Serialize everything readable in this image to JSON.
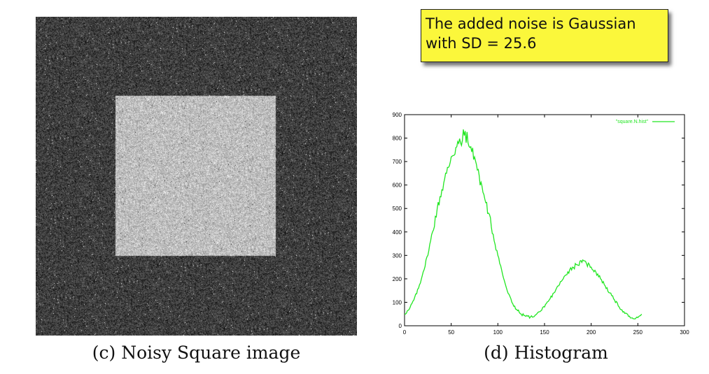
{
  "left_panel": {
    "caption": "(c) Noisy Square image"
  },
  "note": {
    "line1": "The added noise is Gaussian",
    "line2": "with SD = 25.6"
  },
  "chart_data": {
    "type": "line",
    "caption": "(d) Histogram",
    "legend": "\"square.N.hist\"",
    "legend_position": "top-right",
    "line_color": "#22e622",
    "xlim": [
      0,
      300
    ],
    "ylim": [
      0,
      900
    ],
    "xticks": [
      0,
      50,
      100,
      150,
      200,
      250,
      300
    ],
    "yticks": [
      0,
      100,
      200,
      300,
      400,
      500,
      600,
      700,
      800,
      900
    ],
    "grid": false,
    "series": [
      {
        "name": "\"square.N.hist\"",
        "x": [
          0,
          5,
          10,
          15,
          20,
          25,
          30,
          35,
          40,
          45,
          50,
          55,
          60,
          62,
          65,
          68,
          70,
          75,
          80,
          85,
          90,
          95,
          100,
          105,
          110,
          115,
          120,
          125,
          130,
          135,
          140,
          145,
          150,
          155,
          160,
          165,
          170,
          175,
          180,
          185,
          190,
          195,
          200,
          205,
          210,
          215,
          220,
          225,
          230,
          235,
          240,
          245,
          250,
          254
        ],
        "y": [
          50,
          70,
          110,
          160,
          230,
          300,
          400,
          500,
          580,
          650,
          720,
          760,
          780,
          790,
          830,
          780,
          760,
          720,
          640,
          560,
          480,
          390,
          300,
          220,
          150,
          100,
          70,
          50,
          40,
          38,
          45,
          60,
          80,
          110,
          140,
          170,
          200,
          230,
          250,
          260,
          270,
          265,
          250,
          230,
          200,
          170,
          140,
          110,
          80,
          60,
          40,
          30,
          35,
          50
        ]
      }
    ]
  }
}
